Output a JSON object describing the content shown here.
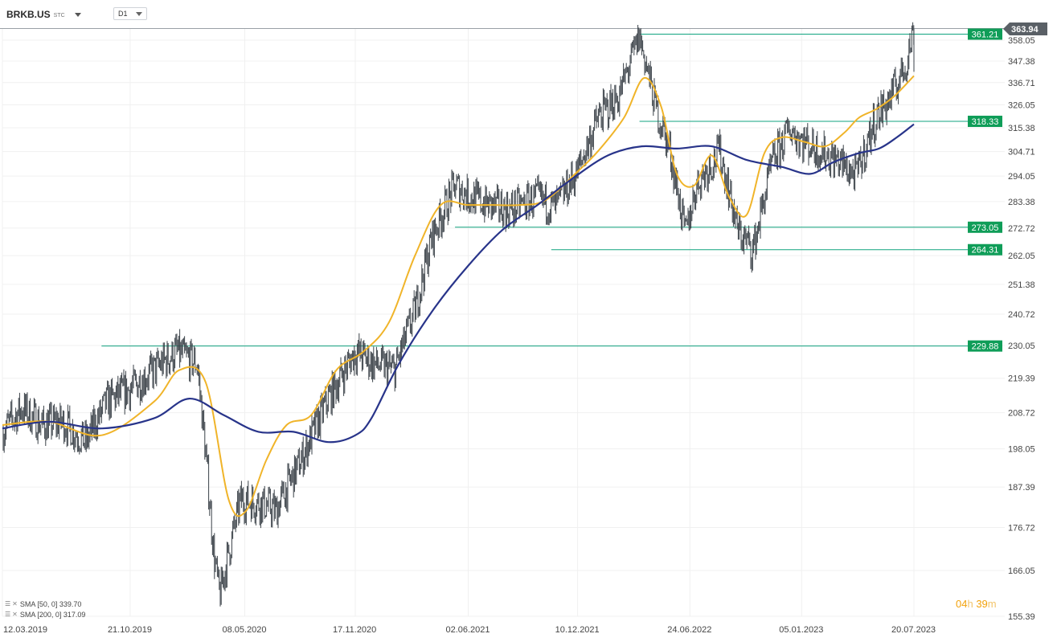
{
  "header": {
    "symbol": "BRKB.US",
    "symbol_suffix": "STC",
    "timeframe": "D1",
    "dropdown_icon": "chevron-down-icon"
  },
  "legend": {
    "sma50": "SMA [50, 0] 339.70",
    "sma200": "SMA [200, 0] 317.09",
    "icons": [
      "settings-lines-icon",
      "close-x-icon"
    ]
  },
  "countdown": {
    "hours": "04",
    "hours_unit": "h",
    "minutes": "39",
    "minutes_unit": "m"
  },
  "colors": {
    "price": "#3a4148",
    "sma50": "#f0b429",
    "sma200": "#28348a",
    "level": "#10a37f",
    "level_label_bg": "#0f9d58",
    "current_price_bg": "#5a6066",
    "grid": "#f0f0f0",
    "axis_text": "#444444"
  },
  "chart_data": {
    "type": "line",
    "title": "",
    "xlabel": "",
    "ylabel": "",
    "ylim": [
      155.39,
      363.94
    ],
    "y_scale": "log",
    "y_ticks": [
      "358.05",
      "347.38",
      "336.71",
      "326.05",
      "315.38",
      "304.71",
      "294.05",
      "283.38",
      "272.72",
      "262.05",
      "251.38",
      "240.72",
      "230.05",
      "219.39",
      "208.72",
      "198.05",
      "187.39",
      "176.72",
      "166.05",
      "155.39"
    ],
    "x_ticks": [
      "12.03.2019",
      "21.10.2019",
      "08.05.2020",
      "17.11.2020",
      "02.06.2021",
      "10.12.2021",
      "24.06.2022",
      "05.01.2023",
      "20.07.2023"
    ],
    "x_range": [
      "2019-03-12",
      "2023-07-20"
    ],
    "current_price": "363.94",
    "horizontal_levels": [
      {
        "label": "361.21",
        "value": 361.21,
        "start": "2022-03-28"
      },
      {
        "label": "318.33",
        "value": 318.33,
        "start": "2022-03-28"
      },
      {
        "label": "273.05",
        "value": 273.05,
        "start": "2021-05-10"
      },
      {
        "label": "264.31",
        "value": 264.31,
        "start": "2021-10-25"
      },
      {
        "label": "229.88",
        "value": 229.88,
        "start": "2019-09-01"
      }
    ],
    "series": [
      {
        "name": "price",
        "x": [
          "2019-03-12",
          "2019-04-15",
          "2019-05-20",
          "2019-06-25",
          "2019-08-05",
          "2019-09-10",
          "2019-10-21",
          "2019-12-01",
          "2020-01-10",
          "2020-02-15",
          "2020-03-15",
          "2020-03-25",
          "2020-05-01",
          "2020-06-08",
          "2020-07-01",
          "2020-08-15",
          "2020-10-01",
          "2020-11-17",
          "2020-12-20",
          "2021-01-25",
          "2021-03-01",
          "2021-04-01",
          "2021-05-10",
          "2021-06-02",
          "2021-07-05",
          "2021-08-15",
          "2021-09-30",
          "2021-11-01",
          "2021-12-10",
          "2022-01-15",
          "2022-02-20",
          "2022-03-28",
          "2022-04-25",
          "2022-05-20",
          "2022-06-16",
          "2022-07-05",
          "2022-08-15",
          "2022-09-15",
          "2022-10-12",
          "2022-11-15",
          "2022-12-15",
          "2023-01-05",
          "2023-02-05",
          "2023-03-13",
          "2023-04-10",
          "2023-05-15",
          "2023-06-10",
          "2023-07-05",
          "2023-07-20"
        ],
        "values": [
          203,
          210,
          205,
          206,
          200,
          212,
          216,
          222,
          228,
          224,
          170,
          160,
          184,
          183,
          181,
          195,
          213,
          228,
          224,
          222,
          242,
          270,
          290,
          286,
          282,
          280,
          285,
          281,
          296,
          320,
          330,
          360,
          325,
          305,
          270,
          290,
          305,
          272,
          264,
          300,
          315,
          310,
          305,
          300,
          294,
          320,
          330,
          345,
          363.94
        ]
      },
      {
        "name": "sma50",
        "x": [
          "2019-03-12",
          "2019-06-01",
          "2019-09-01",
          "2019-12-01",
          "2020-01-15",
          "2020-03-01",
          "2020-04-10",
          "2020-05-10",
          "2020-06-15",
          "2020-07-20",
          "2020-09-01",
          "2020-10-15",
          "2020-12-01",
          "2021-01-15",
          "2021-03-01",
          "2021-04-15",
          "2021-06-01",
          "2021-07-15",
          "2021-09-01",
          "2021-10-15",
          "2021-12-10",
          "2022-01-15",
          "2022-03-01",
          "2022-04-05",
          "2022-05-05",
          "2022-06-01",
          "2022-07-01",
          "2022-08-01",
          "2022-09-01",
          "2022-10-01",
          "2022-11-01",
          "2022-12-01",
          "2023-01-10",
          "2023-02-15",
          "2023-03-20",
          "2023-04-15",
          "2023-05-15",
          "2023-06-15",
          "2023-07-20"
        ],
        "values": [
          205,
          206,
          202,
          212,
          222,
          218,
          184,
          181,
          195,
          205,
          208,
          222,
          228,
          238,
          262,
          282,
          282,
          282,
          282,
          284,
          296,
          305,
          320,
          339,
          325,
          295,
          290,
          303,
          285,
          278,
          304,
          311,
          309,
          307,
          313,
          320,
          324,
          330,
          340
        ]
      },
      {
        "name": "sma200",
        "x": [
          "2019-03-12",
          "2019-06-01",
          "2019-09-01",
          "2019-12-01",
          "2020-02-01",
          "2020-04-01",
          "2020-06-01",
          "2020-08-01",
          "2020-10-01",
          "2020-11-17",
          "2020-12-15",
          "2021-02-01",
          "2021-04-01",
          "2021-06-01",
          "2021-08-01",
          "2021-10-01",
          "2021-12-01",
          "2022-02-01",
          "2022-04-01",
          "2022-06-01",
          "2022-08-01",
          "2022-10-01",
          "2022-12-01",
          "2023-01-20",
          "2023-03-01",
          "2023-04-15",
          "2023-05-20",
          "2023-06-20",
          "2023-07-20"
        ],
        "values": [
          204,
          206,
          204,
          207,
          213,
          208,
          203,
          203,
          200,
          202,
          207,
          224,
          242,
          258,
          272,
          282,
          293,
          303,
          307,
          306,
          307,
          301,
          298,
          295,
          300,
          304,
          306,
          311,
          317
        ]
      }
    ]
  }
}
